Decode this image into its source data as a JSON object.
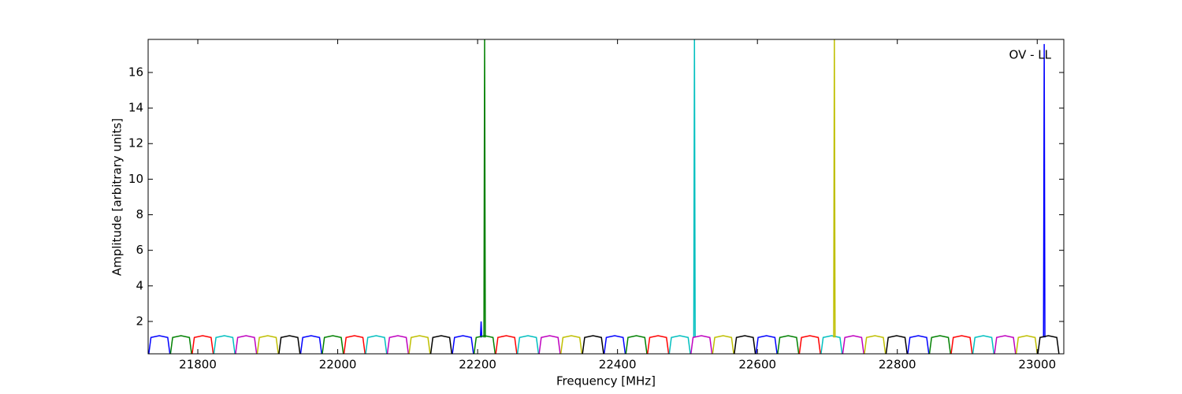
{
  "chart_data": {
    "type": "line",
    "xlabel": "Frequency [MHz]",
    "ylabel": "Amplitude [arbitrary units]",
    "annotation": "OV - LL",
    "xlim": [
      21729,
      23038
    ],
    "ylim": [
      0.18,
      17.86
    ],
    "xticks": [
      21800,
      22000,
      22200,
      22400,
      22600,
      22800,
      23000
    ],
    "yticks": [
      2,
      4,
      6,
      8,
      10,
      12,
      14,
      16
    ],
    "series": [
      {
        "color": "#0000ff",
        "x": [
          21730,
          21733,
          21745,
          21757,
          21760,
          null,
          21947,
          21950,
          21962,
          21974,
          21977,
          null,
          22164,
          22167,
          22179,
          22191,
          22194,
          null,
          22381,
          22384,
          22396,
          22408,
          22411,
          null,
          22598,
          22601,
          22613,
          22625,
          22628,
          null,
          22815,
          22818,
          22830,
          22842,
          22845,
          null,
          22204,
          22205,
          22206,
          null,
          23009,
          23010,
          23011
        ],
        "values": [
          0.2,
          1.1,
          1.2,
          1.1,
          0.2,
          null,
          0.2,
          1.1,
          1.2,
          1.1,
          0.2,
          null,
          0.2,
          1.1,
          1.2,
          1.1,
          0.2,
          null,
          0.2,
          1.1,
          1.2,
          1.1,
          0.2,
          null,
          0.2,
          1.1,
          1.2,
          1.1,
          0.2,
          null,
          0.2,
          1.1,
          1.2,
          1.1,
          0.2,
          null,
          1.1,
          2,
          1.1,
          null,
          1.1,
          17.6,
          1.1
        ]
      },
      {
        "color": "#008000",
        "x": [
          21761,
          21764,
          21776,
          21788,
          21791,
          null,
          21978,
          21981,
          21993,
          22005,
          22008,
          null,
          22195,
          22198,
          22210,
          22222,
          22225,
          null,
          22412,
          22415,
          22427,
          22439,
          22442,
          null,
          22629,
          22632,
          22644,
          22656,
          22659,
          null,
          22846,
          22849,
          22861,
          22873,
          22876,
          null,
          22209,
          22210,
          22211
        ],
        "values": [
          0.2,
          1.1,
          1.2,
          1.1,
          0.2,
          null,
          0.2,
          1.1,
          1.2,
          1.1,
          0.2,
          null,
          0.2,
          1.1,
          1.2,
          1.1,
          0.2,
          null,
          0.2,
          1.1,
          1.2,
          1.1,
          0.2,
          null,
          0.2,
          1.1,
          1.2,
          1.1,
          0.2,
          null,
          0.2,
          1.1,
          1.2,
          1.1,
          0.2,
          null,
          1.1,
          17.86,
          1.1
        ]
      },
      {
        "color": "#ff0000",
        "x": [
          21792,
          21795,
          21807,
          21819,
          21822,
          null,
          22009,
          22012,
          22024,
          22036,
          22039,
          null,
          22226,
          22229,
          22241,
          22253,
          22256,
          null,
          22443,
          22446,
          22458,
          22470,
          22473,
          null,
          22660,
          22663,
          22675,
          22687,
          22690,
          null,
          22877,
          22880,
          22892,
          22904,
          22907
        ],
        "values": [
          0.2,
          1.1,
          1.2,
          1.1,
          0.2,
          null,
          0.2,
          1.1,
          1.2,
          1.1,
          0.2,
          null,
          0.2,
          1.1,
          1.2,
          1.1,
          0.2,
          null,
          0.2,
          1.1,
          1.2,
          1.1,
          0.2,
          null,
          0.2,
          1.1,
          1.2,
          1.1,
          0.2,
          null,
          0.2,
          1.1,
          1.2,
          1.1,
          0.2
        ]
      },
      {
        "color": "#00bfbf",
        "x": [
          21823,
          21826,
          21838,
          21850,
          21853,
          null,
          22040,
          22043,
          22055,
          22067,
          22070,
          null,
          22257,
          22260,
          22272,
          22284,
          22287,
          null,
          22474,
          22477,
          22489,
          22501,
          22504,
          null,
          22691,
          22694,
          22706,
          22718,
          22721,
          null,
          22908,
          22911,
          22923,
          22935,
          22938,
          null,
          22509,
          22510,
          22511
        ],
        "values": [
          0.2,
          1.1,
          1.2,
          1.1,
          0.2,
          null,
          0.2,
          1.1,
          1.2,
          1.1,
          0.2,
          null,
          0.2,
          1.1,
          1.2,
          1.1,
          0.2,
          null,
          0.2,
          1.1,
          1.2,
          1.1,
          0.2,
          null,
          0.2,
          1.1,
          1.2,
          1.1,
          0.2,
          null,
          0.2,
          1.1,
          1.2,
          1.1,
          0.2,
          null,
          1.1,
          17.86,
          1.1
        ]
      },
      {
        "color": "#bf00bf",
        "x": [
          21854,
          21857,
          21869,
          21881,
          21884,
          null,
          22071,
          22074,
          22086,
          22098,
          22101,
          null,
          22288,
          22291,
          22303,
          22315,
          22318,
          null,
          22505,
          22508,
          22520,
          22532,
          22535,
          null,
          22722,
          22725,
          22737,
          22749,
          22752,
          null,
          22939,
          22942,
          22954,
          22966,
          22969
        ],
        "values": [
          0.2,
          1.1,
          1.2,
          1.1,
          0.2,
          null,
          0.2,
          1.1,
          1.2,
          1.1,
          0.2,
          null,
          0.2,
          1.1,
          1.2,
          1.1,
          0.2,
          null,
          0.2,
          1.1,
          1.2,
          1.1,
          0.2,
          null,
          0.2,
          1.1,
          1.2,
          1.1,
          0.2,
          null,
          0.2,
          1.1,
          1.2,
          1.1,
          0.2
        ]
      },
      {
        "color": "#bfbf00",
        "x": [
          21885,
          21888,
          21900,
          21912,
          21915,
          null,
          22102,
          22105,
          22117,
          22129,
          22132,
          null,
          22319,
          22322,
          22334,
          22346,
          22349,
          null,
          22536,
          22539,
          22551,
          22563,
          22566,
          null,
          22753,
          22756,
          22768,
          22780,
          22783,
          null,
          22970,
          22973,
          22985,
          22997,
          23000,
          null,
          22709,
          22710,
          22711
        ],
        "values": [
          0.2,
          1.1,
          1.2,
          1.1,
          0.2,
          null,
          0.2,
          1.1,
          1.2,
          1.1,
          0.2,
          null,
          0.2,
          1.1,
          1.2,
          1.1,
          0.2,
          null,
          0.2,
          1.1,
          1.2,
          1.1,
          0.2,
          null,
          0.2,
          1.1,
          1.2,
          1.1,
          0.2,
          null,
          0.2,
          1.1,
          1.2,
          1.1,
          0.2,
          null,
          1.1,
          17.86,
          1.1
        ]
      },
      {
        "color": "#000000",
        "x": [
          21916,
          21919,
          21931,
          21943,
          21946,
          null,
          22133,
          22136,
          22148,
          22160,
          22163,
          null,
          22350,
          22353,
          22365,
          22377,
          22380,
          null,
          22567,
          22570,
          22582,
          22594,
          22597,
          null,
          22784,
          22787,
          22799,
          22811,
          22814,
          null,
          23001,
          23004,
          23016,
          23028,
          23031
        ],
        "values": [
          0.2,
          1.1,
          1.2,
          1.1,
          0.2,
          null,
          0.2,
          1.1,
          1.2,
          1.1,
          0.2,
          null,
          0.2,
          1.1,
          1.2,
          1.1,
          0.2,
          null,
          0.2,
          1.1,
          1.2,
          1.1,
          0.2,
          null,
          0.2,
          1.1,
          1.2,
          1.1,
          0.2,
          null,
          0.2,
          1.1,
          1.2,
          1.1,
          0.2
        ]
      }
    ]
  }
}
